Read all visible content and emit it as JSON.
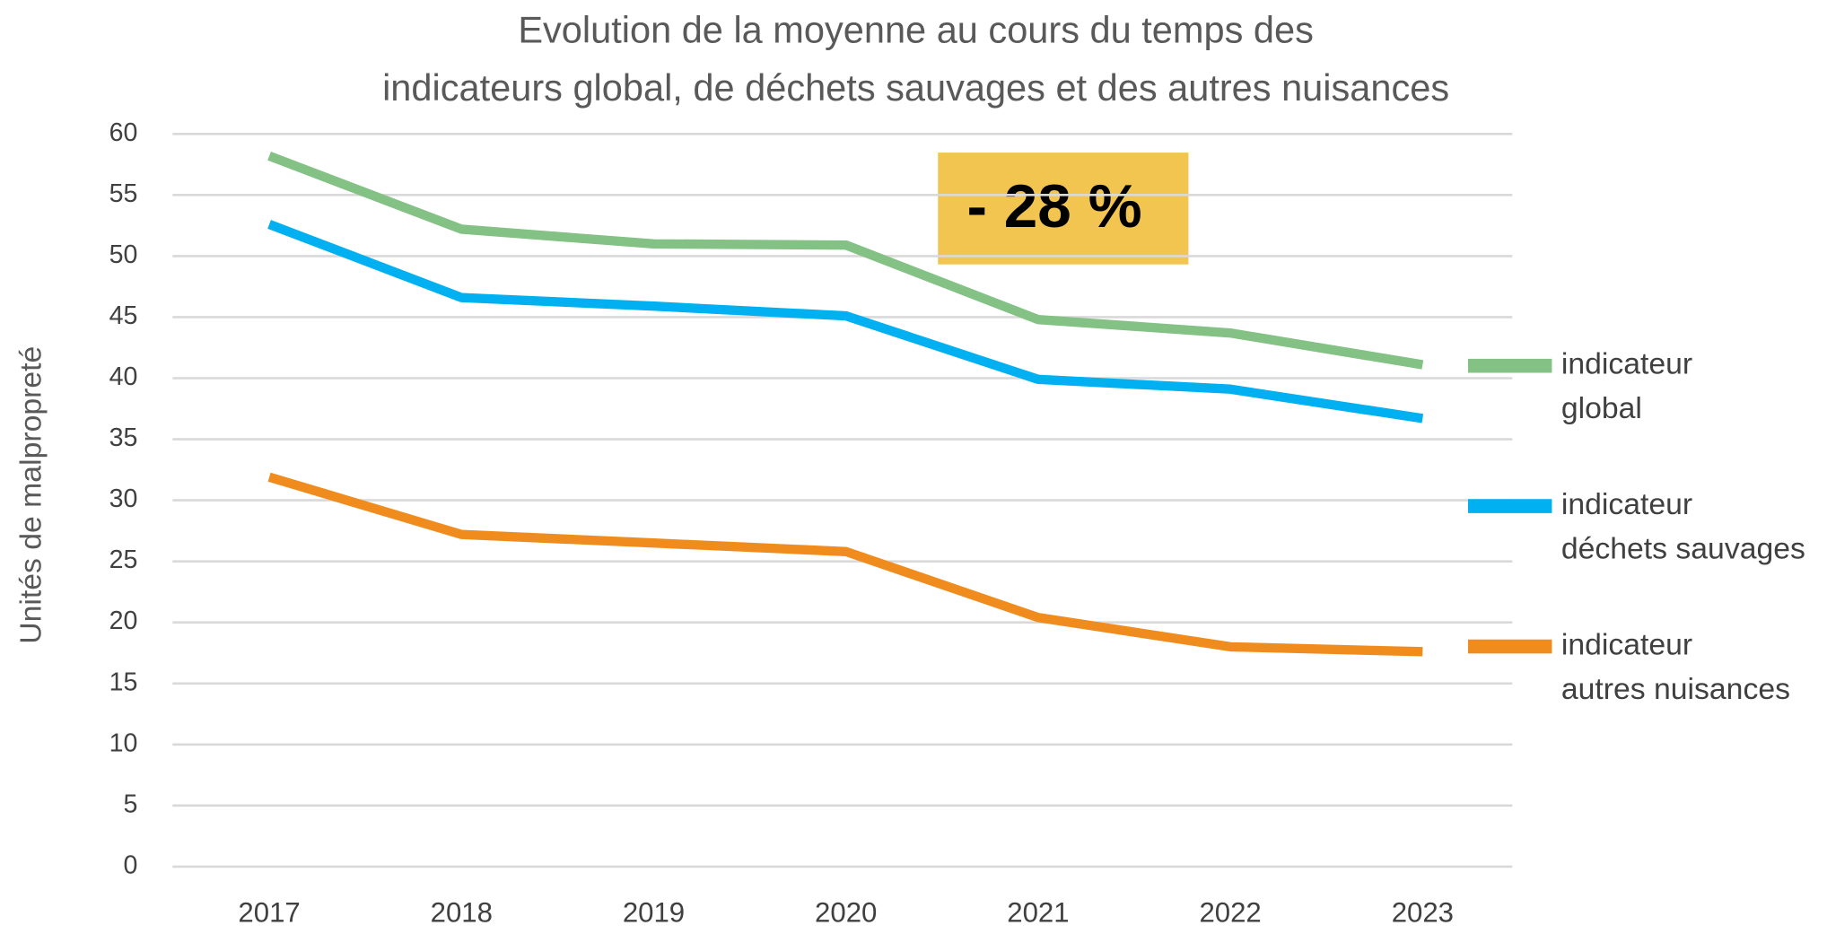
{
  "chart_data": {
    "type": "line",
    "title": [
      "Evolution de la moyenne au cours du temps des",
      "indicateurs global, de déchets sauvages et des autres nuisances"
    ],
    "y_label": "Unités de malpropreté",
    "annotation": "- 28 %",
    "categories": [
      "2017",
      "2018",
      "2019",
      "2020",
      "2021",
      "2022",
      "2023"
    ],
    "series": [
      {
        "name": "indicateur global",
        "color": "#84c184",
        "values": [
          58.2,
          52.2,
          51.0,
          50.9,
          44.8,
          43.7,
          41.1
        ]
      },
      {
        "name": "indicateur déchets sauvages",
        "color": "#00b0f0",
        "values": [
          52.6,
          46.6,
          45.9,
          45.1,
          39.9,
          39.1,
          36.7
        ]
      },
      {
        "name": "indicateur autres nuisances",
        "color": "#f08c1e",
        "values": [
          31.9,
          27.2,
          26.5,
          25.8,
          20.4,
          18.0,
          17.6
        ]
      }
    ],
    "ylim": [
      0,
      60
    ],
    "yticks": [
      0,
      5,
      10,
      15,
      20,
      25,
      30,
      35,
      40,
      45,
      50,
      55,
      60
    ],
    "grid": true,
    "legend": "right"
  }
}
